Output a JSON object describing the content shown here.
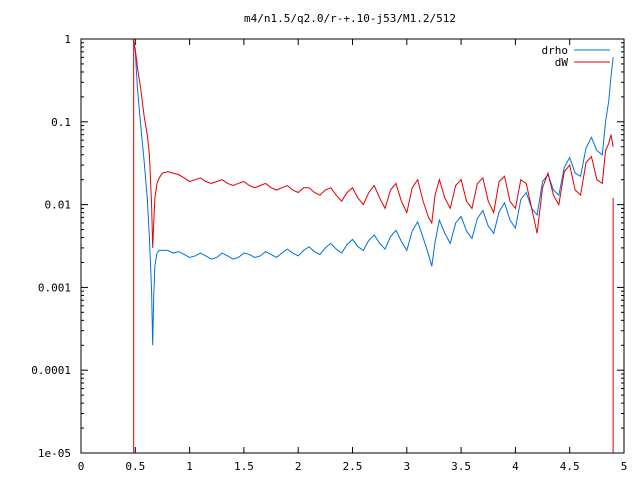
{
  "chart_data": {
    "type": "line",
    "title": "m4/n1.5/q2.0/r-+.10-j53/M1.2/512",
    "xlabel": "",
    "ylabel": "",
    "xlim": [
      0,
      5
    ],
    "ylim": [
      1e-05,
      1
    ],
    "yscale": "log",
    "grid": false,
    "legend_position": "top-right",
    "x_ticks": [
      0,
      0.5,
      1,
      1.5,
      2,
      2.5,
      3,
      3.5,
      4,
      4.5,
      5
    ],
    "x_tick_labels": [
      "0",
      "0.5",
      "1",
      "1.5",
      "2",
      "2.5",
      "3",
      "3.5",
      "4",
      "4.5",
      "5"
    ],
    "y_ticks": [
      1e-05,
      0.0001,
      0.001,
      0.01,
      0.1,
      1
    ],
    "y_tick_labels": [
      "1e-05",
      "0.0001",
      "0.001",
      "0.01",
      "0.1",
      "1"
    ],
    "series": [
      {
        "name": "drho",
        "color": "#0070e0",
        "x": [
          0.48,
          0.5,
          0.52,
          0.55,
          0.58,
          0.61,
          0.63,
          0.65,
          0.66,
          0.67,
          0.68,
          0.7,
          0.72,
          0.75,
          0.8,
          0.85,
          0.9,
          0.95,
          1.0,
          1.05,
          1.1,
          1.15,
          1.2,
          1.25,
          1.3,
          1.35,
          1.4,
          1.45,
          1.5,
          1.55,
          1.6,
          1.65,
          1.7,
          1.75,
          1.8,
          1.85,
          1.9,
          1.95,
          2.0,
          2.05,
          2.1,
          2.15,
          2.2,
          2.25,
          2.3,
          2.35,
          2.4,
          2.45,
          2.5,
          2.55,
          2.6,
          2.65,
          2.7,
          2.75,
          2.8,
          2.85,
          2.9,
          2.95,
          3.0,
          3.05,
          3.1,
          3.15,
          3.2,
          3.23,
          3.26,
          3.3,
          3.35,
          3.4,
          3.45,
          3.5,
          3.55,
          3.6,
          3.65,
          3.7,
          3.75,
          3.8,
          3.85,
          3.9,
          3.95,
          4.0,
          4.05,
          4.1,
          4.15,
          4.2,
          4.25,
          4.3,
          4.35,
          4.4,
          4.45,
          4.5,
          4.55,
          4.6,
          4.65,
          4.7,
          4.75,
          4.8,
          4.83,
          4.86,
          4.88,
          4.9
        ],
        "values": [
          1.0,
          0.7,
          0.25,
          0.09,
          0.035,
          0.012,
          0.004,
          0.0009,
          0.0002,
          0.0008,
          0.0018,
          0.0026,
          0.0028,
          0.0028,
          0.0028,
          0.0026,
          0.0027,
          0.0025,
          0.0023,
          0.0024,
          0.0026,
          0.0024,
          0.0022,
          0.0023,
          0.0026,
          0.0024,
          0.0022,
          0.0023,
          0.0026,
          0.0025,
          0.0023,
          0.0024,
          0.0027,
          0.0025,
          0.0023,
          0.0026,
          0.0029,
          0.0026,
          0.0024,
          0.0028,
          0.0031,
          0.0027,
          0.0025,
          0.003,
          0.0034,
          0.0029,
          0.0026,
          0.0033,
          0.0038,
          0.0031,
          0.0028,
          0.0037,
          0.0043,
          0.0034,
          0.0029,
          0.0041,
          0.0049,
          0.0036,
          0.0028,
          0.0048,
          0.0062,
          0.004,
          0.0025,
          0.0018,
          0.0035,
          0.0065,
          0.0045,
          0.0034,
          0.006,
          0.0072,
          0.0048,
          0.0039,
          0.0068,
          0.0085,
          0.0055,
          0.0045,
          0.0082,
          0.0105,
          0.0065,
          0.0052,
          0.0115,
          0.014,
          0.009,
          0.0075,
          0.019,
          0.023,
          0.015,
          0.013,
          0.028,
          0.037,
          0.024,
          0.022,
          0.048,
          0.065,
          0.045,
          0.04,
          0.1,
          0.18,
          0.35,
          0.6
        ]
      },
      {
        "name": "dW",
        "color": "#e00000",
        "x": [
          0.48,
          0.5,
          0.52,
          0.55,
          0.58,
          0.61,
          0.63,
          0.65,
          0.66,
          0.67,
          0.68,
          0.7,
          0.72,
          0.75,
          0.8,
          0.85,
          0.9,
          0.95,
          1.0,
          1.05,
          1.1,
          1.15,
          1.2,
          1.25,
          1.3,
          1.35,
          1.4,
          1.45,
          1.5,
          1.55,
          1.6,
          1.65,
          1.7,
          1.75,
          1.8,
          1.85,
          1.9,
          1.95,
          2.0,
          2.05,
          2.1,
          2.15,
          2.2,
          2.25,
          2.3,
          2.35,
          2.4,
          2.45,
          2.5,
          2.55,
          2.6,
          2.65,
          2.7,
          2.75,
          2.8,
          2.85,
          2.9,
          2.95,
          3.0,
          3.05,
          3.1,
          3.15,
          3.2,
          3.23,
          3.26,
          3.3,
          3.35,
          3.4,
          3.45,
          3.5,
          3.55,
          3.6,
          3.65,
          3.7,
          3.75,
          3.8,
          3.85,
          3.9,
          3.95,
          4.0,
          4.05,
          4.1,
          4.15,
          4.2,
          4.25,
          4.3,
          4.35,
          4.4,
          4.45,
          4.5,
          4.55,
          4.6,
          4.65,
          4.7,
          4.75,
          4.8,
          4.83,
          4.86,
          4.88,
          4.9
        ],
        "values": [
          1.0,
          0.75,
          0.45,
          0.25,
          0.12,
          0.07,
          0.04,
          0.01,
          0.003,
          0.006,
          0.012,
          0.018,
          0.021,
          0.024,
          0.025,
          0.024,
          0.023,
          0.021,
          0.019,
          0.02,
          0.021,
          0.019,
          0.018,
          0.019,
          0.02,
          0.018,
          0.017,
          0.018,
          0.019,
          0.017,
          0.016,
          0.017,
          0.018,
          0.016,
          0.015,
          0.016,
          0.017,
          0.015,
          0.014,
          0.016,
          0.016,
          0.014,
          0.013,
          0.015,
          0.016,
          0.013,
          0.011,
          0.014,
          0.016,
          0.012,
          0.01,
          0.014,
          0.017,
          0.012,
          0.009,
          0.015,
          0.018,
          0.011,
          0.008,
          0.016,
          0.02,
          0.011,
          0.007,
          0.006,
          0.013,
          0.02,
          0.012,
          0.009,
          0.017,
          0.02,
          0.011,
          0.009,
          0.018,
          0.021,
          0.011,
          0.008,
          0.019,
          0.022,
          0.011,
          0.009,
          0.02,
          0.018,
          0.009,
          0.0045,
          0.016,
          0.024,
          0.013,
          0.01,
          0.025,
          0.03,
          0.015,
          0.013,
          0.032,
          0.038,
          0.02,
          0.018,
          0.045,
          0.055,
          0.07,
          0.05
        ]
      }
    ]
  }
}
